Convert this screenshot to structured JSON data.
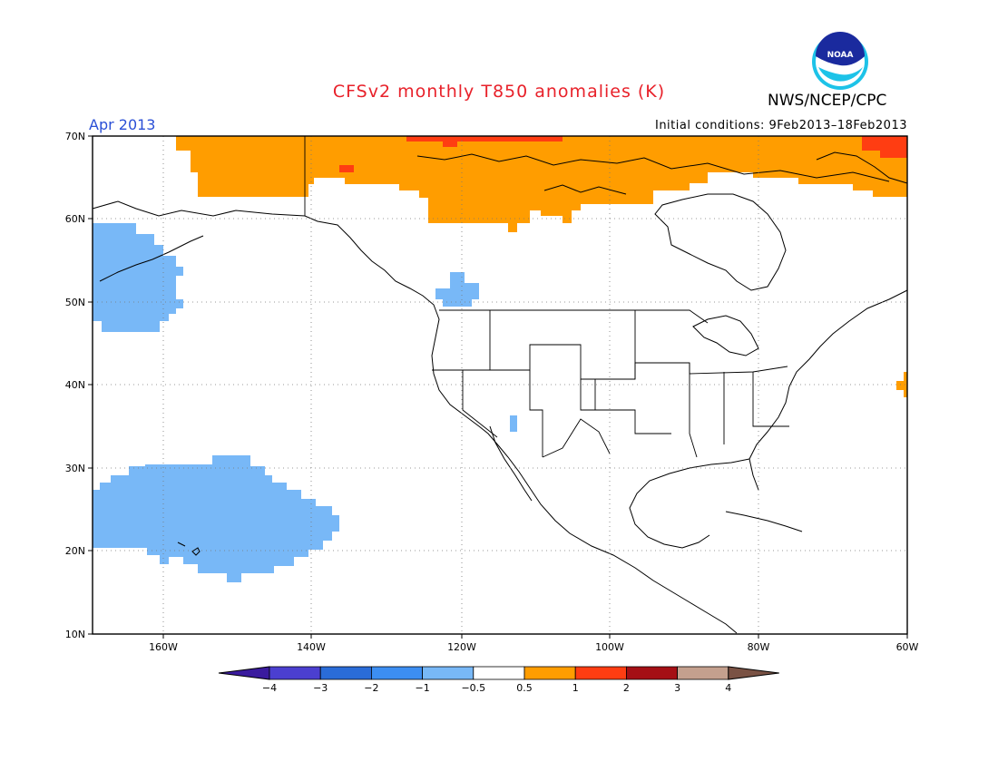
{
  "title": "CFSv2 monthly T850 anomalies (K)",
  "month": "Apr 2013",
  "org": "NWS/NCEP/CPC",
  "init_conditions": "Initial conditions: 9Feb2013–18Feb2013",
  "logo_text": "NOAA",
  "lat_labels": [
    "70N",
    "60N",
    "50N",
    "40N",
    "30N",
    "20N",
    "10N"
  ],
  "lon_labels": [
    "160W",
    "140W",
    "120W",
    "100W",
    "80W",
    "60W"
  ],
  "colorbar": {
    "labels": [
      "−4",
      "−3",
      "−2",
      "−1",
      "−0.5",
      "0.5",
      "1",
      "2",
      "3",
      "4"
    ],
    "colors": [
      "#3a1b9e",
      "#4b3fd0",
      "#2a6cd8",
      "#3c8ef2",
      "#78b8f7",
      "#ffffff",
      "#ff9d00",
      "#ff3d12",
      "#a50f15",
      "#c4a08e",
      "#7a5244"
    ]
  },
  "anomaly_colors": {
    "orange": "#ff9d00",
    "red": "#ff3d12",
    "blue": "#78b8f7"
  }
}
